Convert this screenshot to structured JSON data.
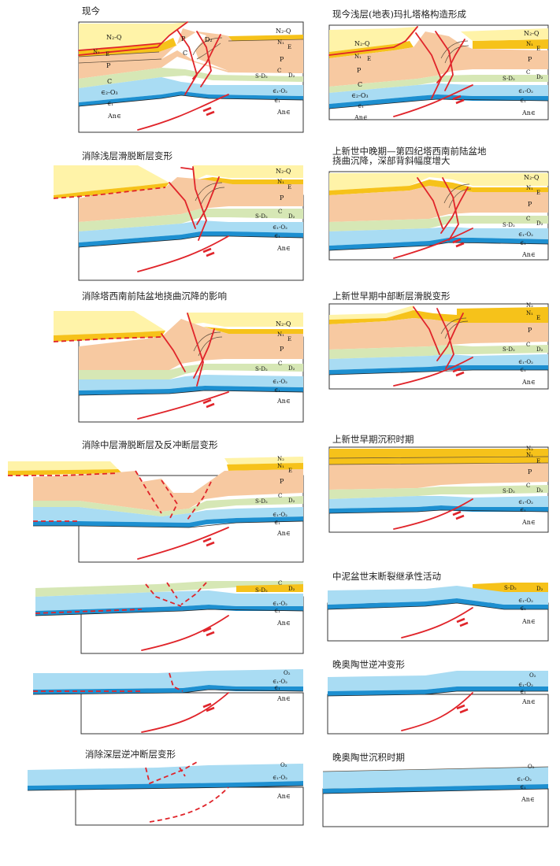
{
  "left_panels": [
    {
      "title": "现今",
      "labels": [
        "N₂-Q",
        "N₁",
        "E",
        "P",
        "C",
        "∈₂-O₃",
        "∈₁",
        "An∈",
        "P",
        "C",
        "D₂",
        "N₂-Q",
        "N₁",
        "E",
        "P",
        "S-D₂",
        "C",
        "D₂",
        "∈₁-O₂",
        "∈₁",
        "An∈"
      ]
    },
    {
      "title": "消除浅层滑脱断层变形",
      "labels": [
        "N₂-Q",
        "N₁",
        "E",
        "P",
        "S-D₂",
        "C",
        "D₂",
        "∈₁-O₂",
        "∈₁",
        "An∈"
      ]
    },
    {
      "title": "消除塔西南前陆盆地挠曲沉降的影响",
      "labels": [
        "N₂-Q",
        "N₁",
        "E",
        "P",
        "S-D₂",
        "C",
        "D₂",
        "∈₁-O₂",
        "∈₁",
        "An∈"
      ]
    },
    {
      "title": "消除中层滑脱断层及反冲断层变形",
      "labels": [
        "N₂",
        "N₁",
        "E",
        "P",
        "S-D₂",
        "C",
        "D₂",
        "∈₁-O₂",
        "∈₁",
        "An∈"
      ]
    },
    {
      "title": "",
      "labels": [
        "C",
        "S-D₂",
        "D₂",
        "∈₁-O₂",
        "∈₁",
        "An∈"
      ]
    },
    {
      "title": "",
      "labels": [
        "O₂",
        "∈₁-O₂",
        "∈₁",
        "An∈"
      ]
    },
    {
      "title": "消除深层逆冲断层变形",
      "labels": [
        "O₂",
        "∈₁-O₂",
        "An∈"
      ]
    }
  ],
  "right_panels": [
    {
      "title": "现今浅层(地表)玛扎塔格构造形成",
      "labels": [
        "N₂-Q",
        "N₁",
        "E",
        "P",
        "C",
        "∈₂-O₃",
        "∈₁",
        "An∈",
        "N₂-Q",
        "N₁",
        "E",
        "P",
        "S-D₂",
        "C",
        "D₂",
        "∈₁-O₂",
        "∈₁",
        "An∈"
      ]
    },
    {
      "title": "上新世中晚期—第四纪塔西南前陆盆地",
      "title2": "挠曲沉降，深部背斜幅度增大",
      "labels": [
        "N₂-Q",
        "N₁",
        "E",
        "P",
        "S-D₂",
        "C",
        "D₂",
        "∈₁-O₂",
        "∈₁",
        "An∈"
      ]
    },
    {
      "title": "上新世早期中部断层滑脱变形",
      "labels": [
        "N₂",
        "N₁",
        "E",
        "P",
        "S-D₂",
        "C",
        "D₂",
        "∈₁-O₂",
        "∈₁",
        "An∈"
      ]
    },
    {
      "title": "上新世早期沉积时期",
      "labels": [
        "N₂",
        "N₁",
        "E",
        "P",
        "S-D₂",
        "C",
        "D₂",
        "∈₁-O₂",
        "∈₁",
        "An∈"
      ]
    },
    {
      "title": "中泥盆世末断裂继承性活动",
      "labels": [
        "S-D₂",
        "D₂",
        "∈₁-O₂",
        "∈₁",
        "An∈"
      ]
    },
    {
      "title": "晚奥陶世逆冲变形",
      "labels": [
        "O₂",
        "∈₁-O₂",
        "∈₁",
        "An∈"
      ]
    },
    {
      "title": "晚奥陶世沉积时期",
      "labels": [
        "O₂",
        "∈₁-O₂",
        "∈₁",
        "An∈"
      ]
    }
  ]
}
